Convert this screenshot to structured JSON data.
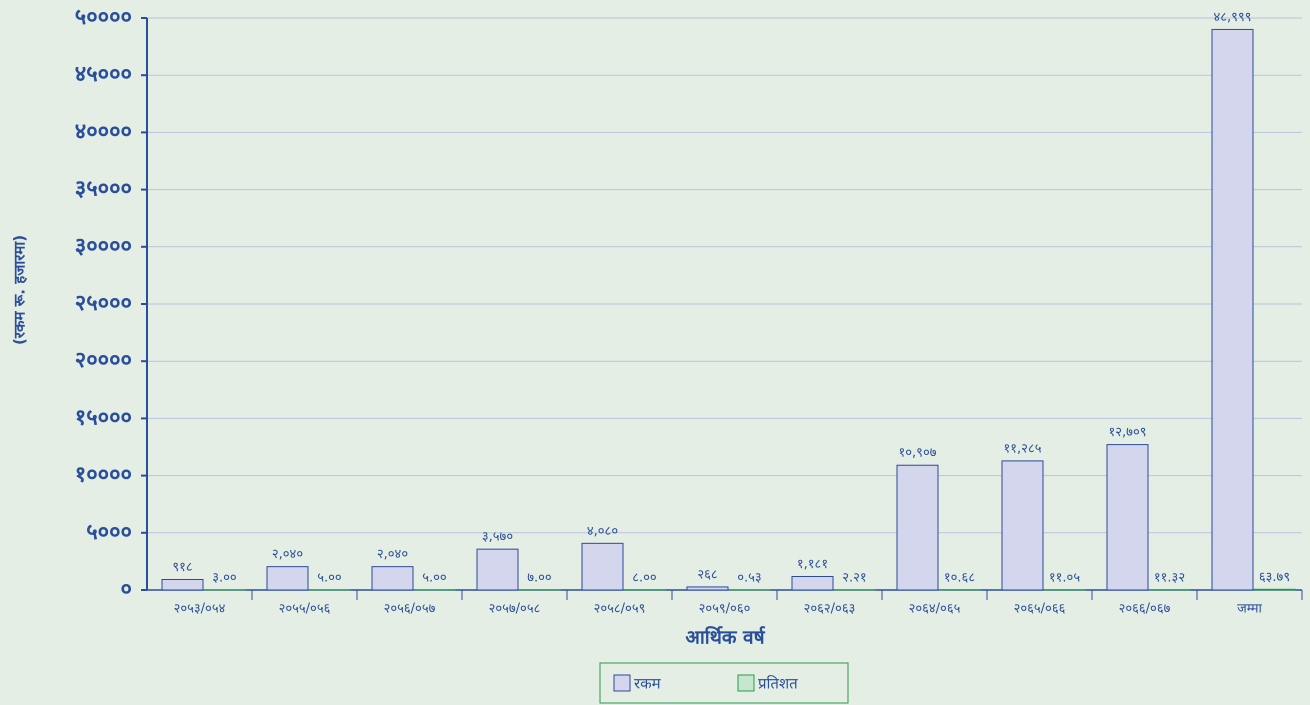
{
  "chart_data": {
    "type": "bar",
    "y_axis_label": "(रकम रू. हजारमा)",
    "x_axis_label": "आर्थिक वर्ष",
    "categories": [
      "२०५३/०५४",
      "२०५५/०५६",
      "२०५६/०५७",
      "२०५७/०५८",
      "२०५८/०५९",
      "२०५९/०६०",
      "२०६२/०६३",
      "२०६४/०६५",
      "२०६५/०६६",
      "२०६६/०६७",
      "जम्मा"
    ],
    "series": [
      {
        "name": "रकम",
        "color": "#d4d6ee",
        "values": [
          918,
          2040,
          2040,
          3570,
          4080,
          268,
          1181,
          10907,
          11285,
          12709,
          48999
        ],
        "value_labels": [
          "९१८",
          "२,०४०",
          "२,०४०",
          "३,५७०",
          "४,०८०",
          "२६८",
          "१,१८१",
          "१०,९०७",
          "११,२८५",
          "१२,७०९",
          "४८,९९९"
        ]
      },
      {
        "name": "प्रतिशत",
        "color": "#c6e6cf",
        "values": [
          3.0,
          5.0,
          5.0,
          7.0,
          8.0,
          0.53,
          2.21,
          10.68,
          11.05,
          11.32,
          63.79
        ],
        "value_labels": [
          "३.००",
          "५.००",
          "५.००",
          "७.००",
          "८.००",
          "०.५३",
          "२.२१",
          "१०.६८",
          "११.०५",
          "११.३२",
          "६३.७९"
        ]
      }
    ],
    "ylim": [
      0,
      50000
    ],
    "yticks": [
      {
        "value": 0,
        "label": "०"
      },
      {
        "value": 5000,
        "label": "५०००"
      },
      {
        "value": 10000,
        "label": "१००००"
      },
      {
        "value": 15000,
        "label": "१५०००"
      },
      {
        "value": 20000,
        "label": "२००००"
      },
      {
        "value": 25000,
        "label": "२५०००"
      },
      {
        "value": 30000,
        "label": "३००००"
      },
      {
        "value": 35000,
        "label": "३५०००"
      },
      {
        "value": 40000,
        "label": "४००००"
      },
      {
        "value": 45000,
        "label": "४५०००"
      },
      {
        "value": 50000,
        "label": "५००००"
      }
    ],
    "grid": true
  }
}
